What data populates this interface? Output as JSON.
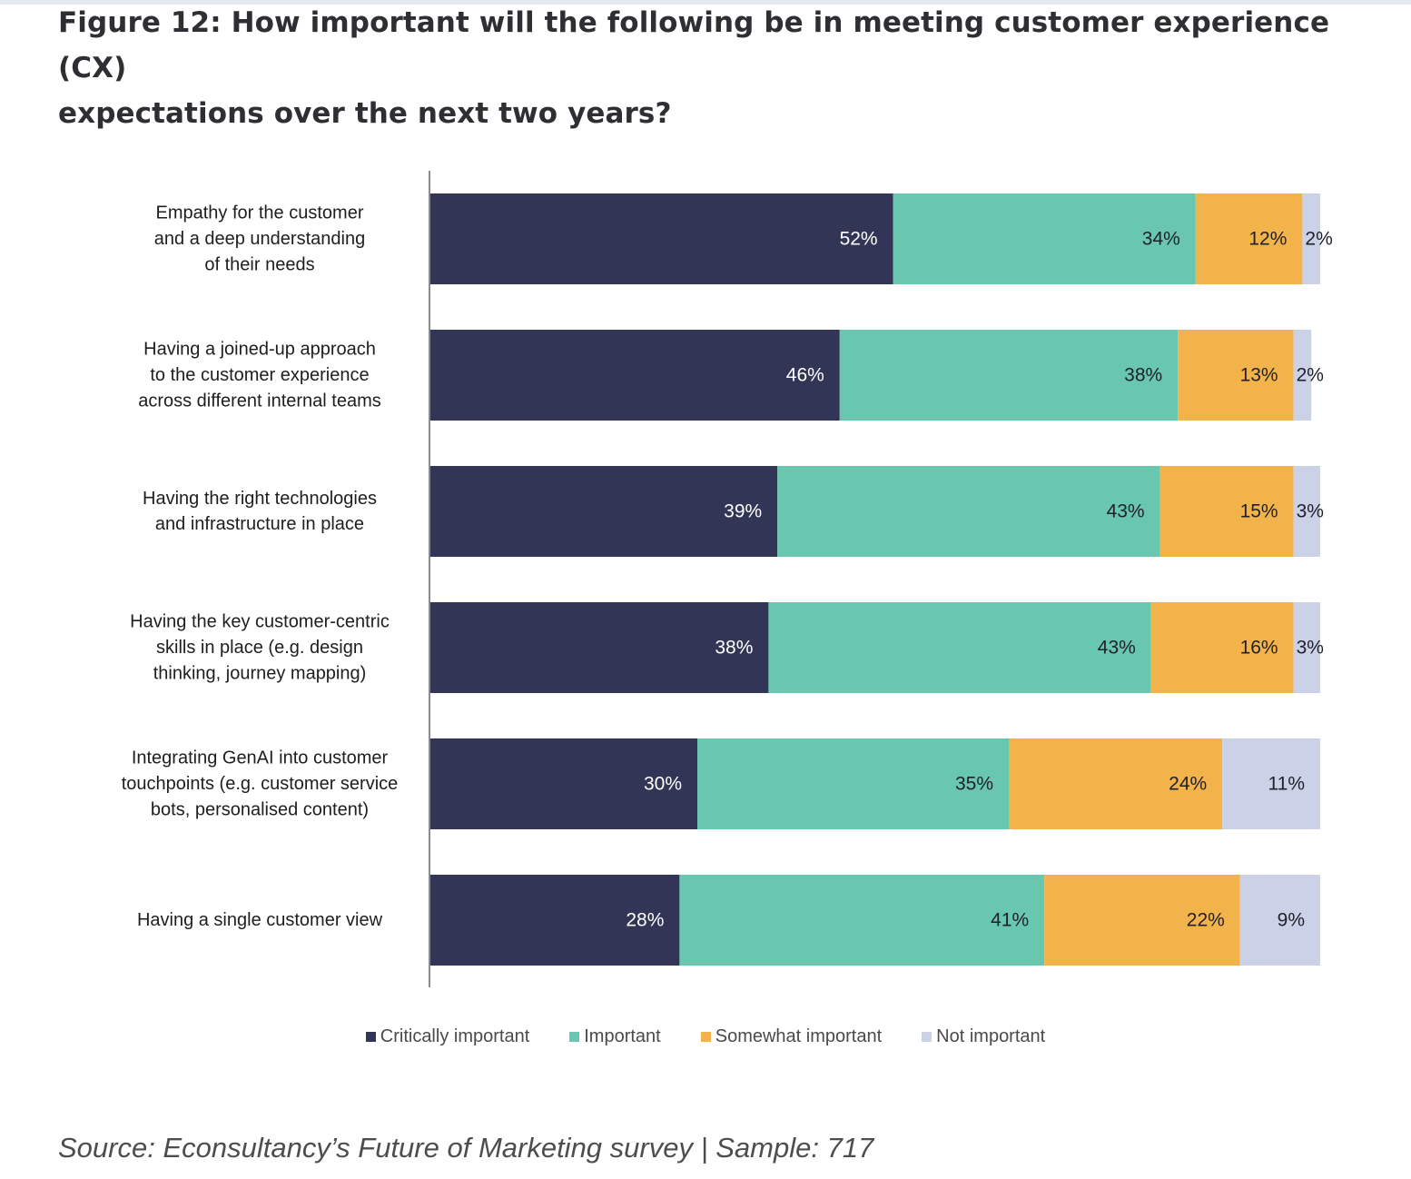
{
  "page": {
    "title_line1": "Figure 12: How important will the following be in meeting customer experience (CX)",
    "title_line2": "expectations over the next two years?",
    "source": "Source: Econsultancy’s Future of Marketing survey | Sample: 717"
  },
  "chart_data": {
    "type": "bar",
    "orientation": "horizontal",
    "stacked": true,
    "title": "How important will the following be in meeting customer experience (CX) expectations over the next two years?",
    "xlim": [
      0,
      100
    ],
    "unit": "%",
    "grid": false,
    "legend_position": "bottom",
    "categories": [
      [
        "Empathy for the customer",
        "and a deep understanding",
        "of their needs"
      ],
      [
        "Having a joined-up approach",
        "to the customer experience",
        "across different internal teams"
      ],
      [
        "Having the right technologies",
        "and infrastructure in place"
      ],
      [
        "Having the key customer-centric",
        "skills in place (e.g. design",
        "thinking, journey mapping)"
      ],
      [
        "Integrating GenAI into customer",
        "touchpoints (e.g. customer service",
        "bots, personalised content)"
      ],
      [
        "Having a single customer view"
      ]
    ],
    "series": [
      {
        "name": "Critically important",
        "color": "#333557",
        "label_color": "#ffffff",
        "values": [
          52,
          46,
          39,
          38,
          30,
          28
        ]
      },
      {
        "name": "Important",
        "color": "#69c6af",
        "label_color": "#1f1f2a",
        "values": [
          34,
          38,
          43,
          43,
          35,
          41
        ]
      },
      {
        "name": "Somewhat important",
        "color": "#f2b34b",
        "label_color": "#1f1f2a",
        "values": [
          12,
          13,
          15,
          16,
          24,
          22
        ]
      },
      {
        "name": "Not important",
        "color": "#cbd2e8",
        "label_color": "#1f1f2a",
        "values": [
          2,
          2,
          3,
          3,
          11,
          9
        ]
      }
    ]
  }
}
